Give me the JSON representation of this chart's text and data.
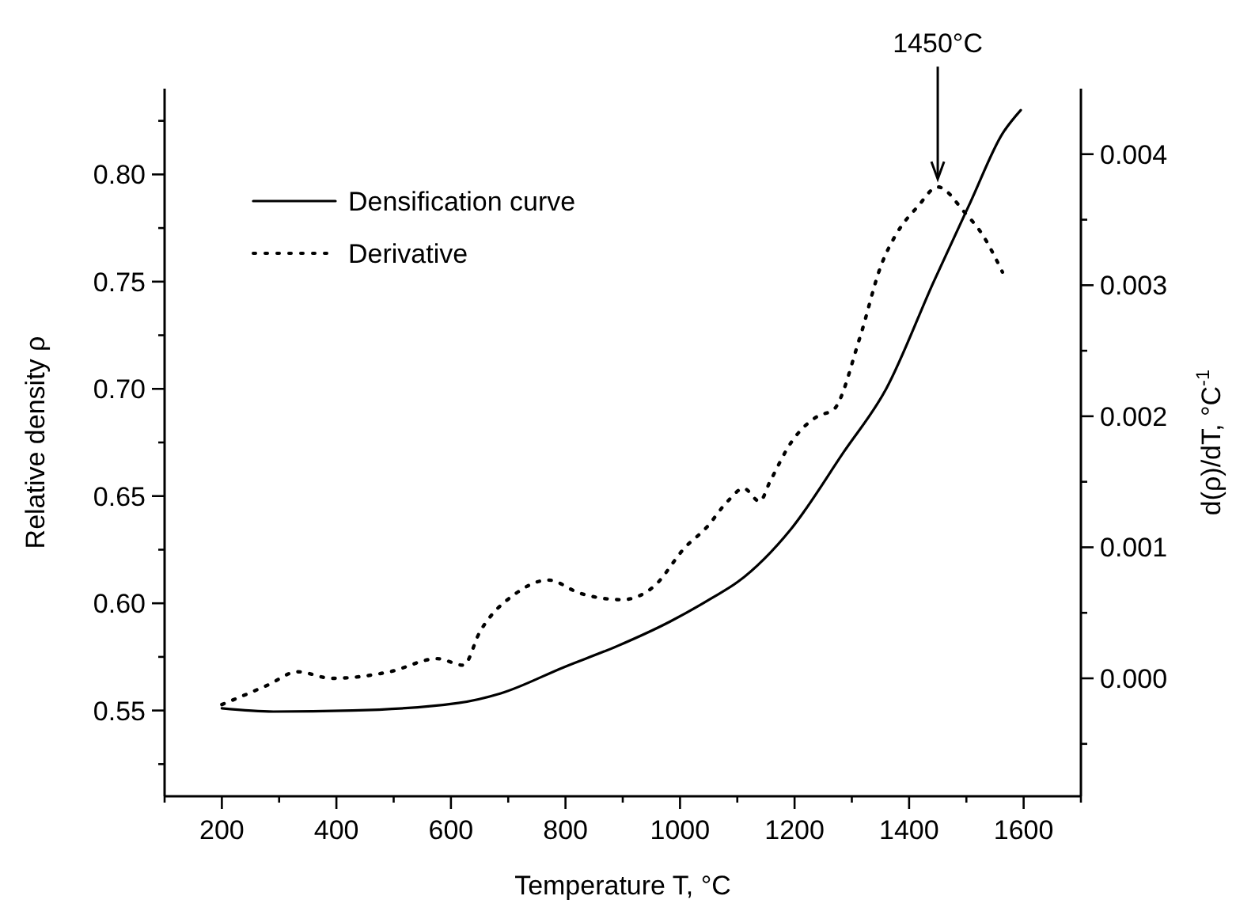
{
  "chart_data": {
    "type": "line",
    "xlabel": "Temperature T, °C",
    "ylabel": "Relative density ρ",
    "y2label": "d(ρ)/dT, °C$^{-1}$",
    "xlim": [
      100,
      1700
    ],
    "xticks": [
      {
        "value": 100,
        "label": null
      },
      200,
      {
        "value": 300,
        "label": null
      },
      400,
      {
        "value": 500,
        "label": null
      },
      600,
      {
        "value": 700,
        "label": null
      },
      800,
      {
        "value": 900,
        "label": null
      },
      1000,
      {
        "value": 1100,
        "label": null
      },
      1200,
      {
        "value": 1300,
        "label": null
      },
      1400,
      {
        "value": 1500,
        "label": null
      },
      1600,
      {
        "value": 1700,
        "label": null
      }
    ],
    "ylim": [
      0.51,
      0.84
    ],
    "yticks": [
      {
        "value": 0.525,
        "label": null
      },
      {
        "value": 0.55,
        "label": "0.55"
      },
      {
        "value": 0.575,
        "label": null
      },
      {
        "value": 0.6,
        "label": "0.60"
      },
      {
        "value": 0.625,
        "label": null
      },
      {
        "value": 0.65,
        "label": "0.65"
      },
      {
        "value": 0.675,
        "label": null
      },
      {
        "value": 0.7,
        "label": "0.70"
      },
      {
        "value": 0.725,
        "label": null
      },
      {
        "value": 0.75,
        "label": "0.75"
      },
      {
        "value": 0.775,
        "label": null
      },
      {
        "value": 0.8,
        "label": "0.80"
      },
      {
        "value": 0.825,
        "label": null
      }
    ],
    "y2lim": [
      -0.0009,
      0.0045
    ],
    "y2ticks": [
      {
        "value": -0.0005,
        "label": null
      },
      {
        "value": 0,
        "label": "0.000"
      },
      {
        "value": 0.0005,
        "label": null
      },
      {
        "value": 0.001,
        "label": "0.001"
      },
      {
        "value": 0.0015,
        "label": null
      },
      {
        "value": 0.002,
        "label": "0.002"
      },
      {
        "value": 0.0025,
        "label": null
      },
      {
        "value": 0.003,
        "label": "0.003"
      },
      {
        "value": 0.0035,
        "label": null
      },
      {
        "value": 0.004,
        "label": "0.004"
      }
    ],
    "legend": "top left",
    "grid": false,
    "marker": "none",
    "annotations": [
      "1450°C"
    ],
    "series": [
      {
        "name": "Densification curve",
        "color": "#000000",
        "line_style": "solid",
        "x": [
          200,
          290,
          428,
          613,
          687,
          798,
          890,
          982,
          1056,
          1101,
          1194,
          1286,
          1360,
          1443,
          1507,
          1563,
          1595
        ],
        "values": [
          0.551,
          0.5495,
          0.55,
          0.5535,
          0.558,
          0.5703,
          0.58,
          0.5914,
          0.6025,
          0.61,
          0.6347,
          0.6706,
          0.7,
          0.75,
          0.787,
          0.819,
          0.83
        ]
      },
      {
        "name": "Derivative",
        "color": "#000000",
        "line_style": "dotted",
        "axis": "y2",
        "x": [
          200,
          281,
          332,
          392,
          493,
          576,
          622,
          650,
          714,
          770,
          825,
          899,
          954,
          1009,
          1046,
          1083,
          1111,
          1139,
          1157,
          1194,
          1240,
          1268,
          1314,
          1351,
          1379,
          1415,
          1450,
          1498,
          1526,
          1563
        ],
        "values": [
          -0.0002,
          -5e-05,
          5e-05,
          0.0,
          5e-05,
          0.00015,
          0.0001,
          0.00035,
          0.00065,
          0.00075,
          0.00065,
          0.0006,
          0.0007,
          0.001,
          0.00115,
          0.00135,
          0.00145,
          0.00135,
          0.0015,
          0.0018,
          0.002,
          0.00205,
          0.0026,
          0.00315,
          0.0034,
          0.0036,
          0.00375,
          0.00355,
          0.0034,
          0.0031
        ]
      }
    ]
  }
}
